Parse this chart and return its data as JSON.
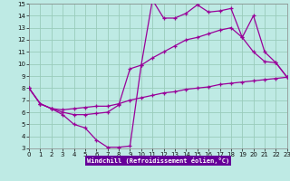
{
  "xlabel": "Windchill (Refroidissement éolien,°C)",
  "bg_color": "#beeae4",
  "grid_color": "#99ccbb",
  "line_color": "#990099",
  "xmin": 0,
  "xmax": 23,
  "ymin": 3,
  "ymax": 15,
  "xticks": [
    0,
    1,
    2,
    3,
    4,
    5,
    6,
    7,
    8,
    9,
    10,
    11,
    12,
    13,
    14,
    15,
    16,
    17,
    18,
    19,
    20,
    21,
    22,
    23
  ],
  "yticks": [
    3,
    4,
    5,
    6,
    7,
    8,
    9,
    10,
    11,
    12,
    13,
    14,
    15
  ],
  "line1_x": [
    0,
    1,
    2,
    3,
    4,
    5,
    6,
    7,
    8,
    9,
    10,
    11,
    12,
    13,
    14,
    15,
    16,
    17,
    18,
    19,
    20,
    21,
    22,
    23
  ],
  "line1_y": [
    8.0,
    6.7,
    6.3,
    6.2,
    6.3,
    6.4,
    6.5,
    6.5,
    6.7,
    7.0,
    7.2,
    7.4,
    7.6,
    7.7,
    7.9,
    8.0,
    8.1,
    8.3,
    8.4,
    8.5,
    8.6,
    8.7,
    8.8,
    8.9
  ],
  "line2_x": [
    0,
    1,
    2,
    3,
    4,
    5,
    6,
    7,
    8,
    9,
    10,
    11,
    12,
    13,
    14,
    15,
    16,
    17,
    18,
    19,
    20,
    21,
    22,
    23
  ],
  "line2_y": [
    8.0,
    6.7,
    6.3,
    5.8,
    5.0,
    4.7,
    3.7,
    3.1,
    3.1,
    3.2,
    9.9,
    15.3,
    13.8,
    13.8,
    14.2,
    14.9,
    14.3,
    14.4,
    14.6,
    12.2,
    14.0,
    11.0,
    10.1,
    8.9
  ],
  "line3_x": [
    0,
    1,
    2,
    3,
    4,
    5,
    6,
    7,
    8,
    9,
    10,
    11,
    12,
    13,
    14,
    15,
    16,
    17,
    18,
    19,
    20,
    21,
    22,
    23
  ],
  "line3_y": [
    8.0,
    6.7,
    6.3,
    6.0,
    5.8,
    5.8,
    5.9,
    6.0,
    6.6,
    9.6,
    9.9,
    10.5,
    11.0,
    11.5,
    12.0,
    12.2,
    12.5,
    12.8,
    13.0,
    12.2,
    11.0,
    10.2,
    10.1,
    8.9
  ],
  "xlabel_bg": "#660099",
  "xlabel_fg": "#ffffff",
  "tick_fontsize": 5,
  "figwidth": 3.2,
  "figheight": 2.0,
  "dpi": 100
}
